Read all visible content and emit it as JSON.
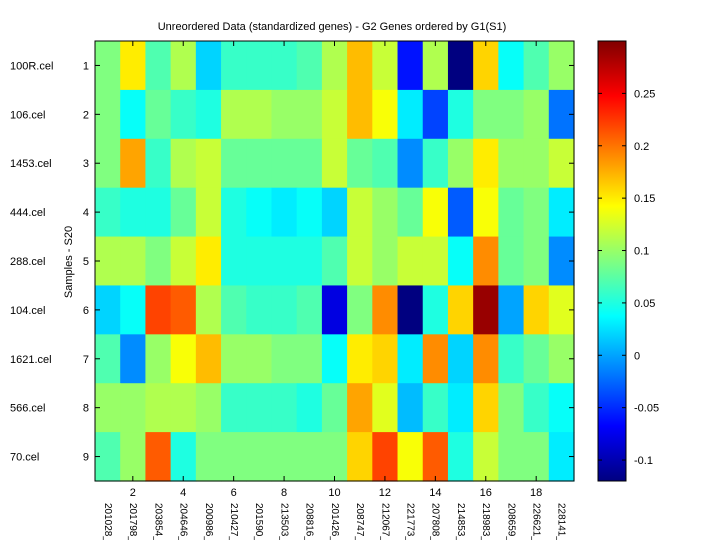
{
  "chart_data": {
    "type": "heatmap",
    "title": "Unreordered Data (standardized genes) - G2 Genes ordered by G1(S1)",
    "ylabel": "Samples - S20",
    "xlabel": "",
    "row_labels": [
      "100R.cel",
      "106.cel",
      "1453.cel",
      "444.cel",
      "288.cel",
      "104.cel",
      "1621.cel",
      "566.cel",
      "70.cel"
    ],
    "row_ticks": [
      "1",
      "2",
      "3",
      "4",
      "5",
      "6",
      "7",
      "8",
      "9"
    ],
    "x_ticks": [
      "2",
      "4",
      "6",
      "8",
      "10",
      "12",
      "14",
      "16",
      "18"
    ],
    "column_labels": [
      "201028_",
      "201798_",
      "203854_",
      "204646_",
      "200986_",
      "210427_",
      "201590_",
      "213503_",
      "208816_",
      "201426_",
      "208747_",
      "212067_",
      "221773_",
      "207808_",
      "214853_",
      "218983_",
      "208659_",
      "226621_",
      "228141_"
    ],
    "values": [
      [
        0.09,
        0.15,
        0.07,
        0.11,
        0.02,
        0.06,
        0.06,
        0.06,
        0.07,
        0.11,
        0.17,
        0.12,
        -0.06,
        0.11,
        -0.12,
        0.16,
        0.04,
        0.07,
        0.1
      ],
      [
        0.09,
        0.04,
        0.08,
        0.06,
        0.05,
        0.11,
        0.11,
        0.1,
        0.1,
        0.12,
        0.17,
        0.14,
        0.03,
        -0.04,
        0.05,
        0.09,
        0.09,
        0.1,
        -0.02
      ],
      [
        0.09,
        0.18,
        0.06,
        0.11,
        0.12,
        0.08,
        0.08,
        0.08,
        0.08,
        0.12,
        0.08,
        0.07,
        -0.01,
        0.06,
        0.1,
        0.15,
        0.1,
        0.1,
        0.12
      ],
      [
        0.06,
        0.05,
        0.05,
        0.08,
        0.12,
        0.05,
        0.04,
        0.03,
        0.04,
        0.02,
        0.12,
        0.1,
        0.08,
        0.14,
        -0.03,
        0.14,
        0.08,
        0.09,
        0.03
      ],
      [
        0.11,
        0.11,
        0.09,
        0.12,
        0.15,
        0.05,
        0.05,
        0.05,
        0.05,
        0.07,
        0.12,
        0.1,
        0.12,
        0.12,
        0.04,
        0.19,
        0.08,
        0.09,
        -0.01
      ],
      [
        0.02,
        0.04,
        0.22,
        0.21,
        0.11,
        0.07,
        0.06,
        0.06,
        0.07,
        -0.08,
        0.09,
        0.19,
        -0.12,
        0.05,
        0.16,
        0.29,
        0.0,
        0.16,
        0.13
      ],
      [
        0.07,
        -0.01,
        0.1,
        0.14,
        0.17,
        0.1,
        0.1,
        0.09,
        0.09,
        0.04,
        0.15,
        0.16,
        0.03,
        0.19,
        0.02,
        0.19,
        0.06,
        0.08,
        0.1
      ],
      [
        0.1,
        0.1,
        0.11,
        0.11,
        0.1,
        0.06,
        0.06,
        0.06,
        0.05,
        0.08,
        0.18,
        0.13,
        0.01,
        0.06,
        0.03,
        0.16,
        0.09,
        0.06,
        0.04
      ],
      [
        0.07,
        0.1,
        0.21,
        0.05,
        0.09,
        0.09,
        0.09,
        0.09,
        0.09,
        0.09,
        0.16,
        0.22,
        0.14,
        0.21,
        0.05,
        0.12,
        0.09,
        0.09,
        0.03
      ]
    ],
    "colorbar": {
      "colormap": "jet",
      "range": [
        -0.12,
        0.3
      ],
      "ticks": [
        -0.1,
        -0.05,
        0,
        0.05,
        0.1,
        0.15,
        0.2,
        0.25
      ],
      "tick_labels": [
        "-0.1",
        "-0.05",
        "0",
        "0.05",
        "0.1",
        "0.15",
        "0.2",
        "0.25"
      ]
    }
  }
}
